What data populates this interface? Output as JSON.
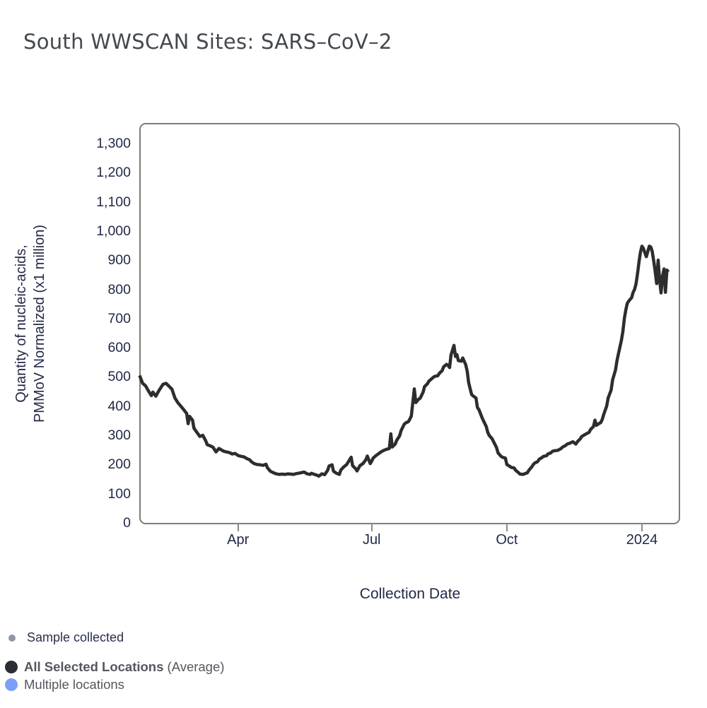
{
  "title": "South WWSCAN Sites: SARS–CoV–2",
  "y_axis": {
    "label_line1": "Quantity of nucleic-acids,",
    "label_line2": "PMMoV Normalized (x1 million)"
  },
  "x_axis": {
    "label": "Collection Date"
  },
  "legend": {
    "sample": {
      "label": "Sample collected",
      "marker_color": "#8e97a1"
    },
    "average": {
      "label_bold": "All Selected Locations",
      "label_rest": " (Average)",
      "marker_color": "#2a2d32"
    },
    "multiple": {
      "label": "Multiple locations",
      "marker_color": "#7aa0f8"
    }
  },
  "colors": {
    "line": "#2d2d2d",
    "panel_border": "#7d7d7d",
    "tick_mark": "#8a8a8a",
    "axis_text": "#232947",
    "title_text": "#44484f",
    "legend_text": "#54575d"
  },
  "chart_data": {
    "type": "line",
    "title": "South WWSCAN Sites: SARS–CoV–2",
    "xlabel": "Collection Date",
    "ylabel": "Quantity of nucleic-acids, PMMoV Normalized (x1 million)",
    "x_domain": [
      "2023-01-24",
      "2024-01-19"
    ],
    "ylim": [
      0,
      1365
    ],
    "grid": false,
    "legend_position": "bottom-left",
    "y_ticks": [
      0,
      100,
      200,
      300,
      400,
      500,
      600,
      700,
      800,
      900,
      1000,
      1100,
      1200,
      1300
    ],
    "x_ticks": [
      {
        "date": "2023-04-01",
        "label": "Apr"
      },
      {
        "date": "2023-07-01",
        "label": "Jul"
      },
      {
        "date": "2023-10-01",
        "label": "Oct"
      },
      {
        "date": "2024-01-01",
        "label": "2024"
      }
    ],
    "series": [
      {
        "name": "All Selected Locations (Average)",
        "color": "#2d2d2d",
        "points": [
          [
            "2023-01-24",
            505
          ],
          [
            "2023-01-26",
            478
          ],
          [
            "2023-01-28",
            470
          ],
          [
            "2023-01-30",
            452
          ],
          [
            "2023-02-01",
            436
          ],
          [
            "2023-02-02",
            448
          ],
          [
            "2023-02-04",
            434
          ],
          [
            "2023-02-06",
            452
          ],
          [
            "2023-02-08",
            468
          ],
          [
            "2023-02-09",
            475
          ],
          [
            "2023-02-11",
            478
          ],
          [
            "2023-02-13",
            468
          ],
          [
            "2023-02-15",
            458
          ],
          [
            "2023-02-17",
            428
          ],
          [
            "2023-02-19",
            412
          ],
          [
            "2023-02-21",
            400
          ],
          [
            "2023-02-23",
            388
          ],
          [
            "2023-02-25",
            375
          ],
          [
            "2023-02-26",
            340
          ],
          [
            "2023-02-27",
            365
          ],
          [
            "2023-03-01",
            352
          ],
          [
            "2023-03-02",
            324
          ],
          [
            "2023-03-04",
            310
          ],
          [
            "2023-03-06",
            296
          ],
          [
            "2023-03-08",
            300
          ],
          [
            "2023-03-10",
            281
          ],
          [
            "2023-03-11",
            268
          ],
          [
            "2023-03-13",
            264
          ],
          [
            "2023-03-15",
            259
          ],
          [
            "2023-03-17",
            243
          ],
          [
            "2023-03-19",
            255
          ],
          [
            "2023-03-21",
            249
          ],
          [
            "2023-03-22",
            246
          ],
          [
            "2023-03-24",
            243
          ],
          [
            "2023-03-26",
            241
          ],
          [
            "2023-03-28",
            236
          ],
          [
            "2023-03-30",
            238
          ],
          [
            "2023-04-01",
            231
          ],
          [
            "2023-04-03",
            228
          ],
          [
            "2023-04-05",
            226
          ],
          [
            "2023-04-07",
            220
          ],
          [
            "2023-04-09",
            216
          ],
          [
            "2023-04-10",
            210
          ],
          [
            "2023-04-12",
            203
          ],
          [
            "2023-04-14",
            200
          ],
          [
            "2023-04-16",
            199
          ],
          [
            "2023-04-18",
            197
          ],
          [
            "2023-04-20",
            201
          ],
          [
            "2023-04-21",
            189
          ],
          [
            "2023-04-23",
            177
          ],
          [
            "2023-04-25",
            172
          ],
          [
            "2023-04-27",
            168
          ],
          [
            "2023-04-29",
            166
          ],
          [
            "2023-05-01",
            167
          ],
          [
            "2023-05-03",
            166
          ],
          [
            "2023-05-05",
            168
          ],
          [
            "2023-05-07",
            167
          ],
          [
            "2023-05-09",
            166
          ],
          [
            "2023-05-10",
            168
          ],
          [
            "2023-05-12",
            170
          ],
          [
            "2023-05-14",
            172
          ],
          [
            "2023-05-16",
            174
          ],
          [
            "2023-05-18",
            168
          ],
          [
            "2023-05-20",
            166
          ],
          [
            "2023-05-21",
            170
          ],
          [
            "2023-05-23",
            166
          ],
          [
            "2023-05-25",
            163
          ],
          [
            "2023-05-26",
            160
          ],
          [
            "2023-05-28",
            168
          ],
          [
            "2023-05-30",
            165
          ],
          [
            "2023-06-01",
            180
          ],
          [
            "2023-06-02",
            195
          ],
          [
            "2023-06-04",
            199
          ],
          [
            "2023-06-05",
            177
          ],
          [
            "2023-06-07",
            170
          ],
          [
            "2023-06-09",
            166
          ],
          [
            "2023-06-10",
            181
          ],
          [
            "2023-06-12",
            192
          ],
          [
            "2023-06-14",
            200
          ],
          [
            "2023-06-16",
            217
          ],
          [
            "2023-06-17",
            225
          ],
          [
            "2023-06-18",
            196
          ],
          [
            "2023-06-20",
            186
          ],
          [
            "2023-06-21",
            178
          ],
          [
            "2023-06-23",
            196
          ],
          [
            "2023-06-25",
            203
          ],
          [
            "2023-06-27",
            216
          ],
          [
            "2023-06-28",
            229
          ],
          [
            "2023-06-30",
            203
          ],
          [
            "2023-07-01",
            211
          ],
          [
            "2023-07-02",
            222
          ],
          [
            "2023-07-04",
            231
          ],
          [
            "2023-07-06",
            238
          ],
          [
            "2023-07-07",
            242
          ],
          [
            "2023-07-09",
            248
          ],
          [
            "2023-07-11",
            252
          ],
          [
            "2023-07-13",
            255
          ],
          [
            "2023-07-14",
            305
          ],
          [
            "2023-07-15",
            260
          ],
          [
            "2023-07-17",
            270
          ],
          [
            "2023-07-18",
            283
          ],
          [
            "2023-07-20",
            298
          ],
          [
            "2023-07-21",
            316
          ],
          [
            "2023-07-23",
            337
          ],
          [
            "2023-07-24",
            342
          ],
          [
            "2023-07-26",
            347
          ],
          [
            "2023-07-27",
            356
          ],
          [
            "2023-07-28",
            366
          ],
          [
            "2023-07-30",
            459
          ],
          [
            "2023-07-31",
            412
          ],
          [
            "2023-08-02",
            424
          ],
          [
            "2023-08-03",
            427
          ],
          [
            "2023-08-05",
            448
          ],
          [
            "2023-08-06",
            467
          ],
          [
            "2023-08-08",
            477
          ],
          [
            "2023-08-09",
            486
          ],
          [
            "2023-08-10",
            490
          ],
          [
            "2023-08-12",
            499
          ],
          [
            "2023-08-13",
            502
          ],
          [
            "2023-08-15",
            504
          ],
          [
            "2023-08-16",
            512
          ],
          [
            "2023-08-18",
            522
          ],
          [
            "2023-08-19",
            535
          ],
          [
            "2023-08-21",
            543
          ],
          [
            "2023-08-22",
            540
          ],
          [
            "2023-08-23",
            532
          ],
          [
            "2023-08-24",
            575
          ],
          [
            "2023-08-26",
            608
          ],
          [
            "2023-08-27",
            570
          ],
          [
            "2023-08-28",
            577
          ],
          [
            "2023-08-29",
            556
          ],
          [
            "2023-08-31",
            554
          ],
          [
            "2023-09-01",
            565
          ],
          [
            "2023-09-03",
            542
          ],
          [
            "2023-09-04",
            520
          ],
          [
            "2023-09-05",
            480
          ],
          [
            "2023-09-07",
            440
          ],
          [
            "2023-09-08",
            435
          ],
          [
            "2023-09-10",
            428
          ],
          [
            "2023-09-11",
            395
          ],
          [
            "2023-09-12",
            388
          ],
          [
            "2023-09-14",
            362
          ],
          [
            "2023-09-15",
            351
          ],
          [
            "2023-09-17",
            330
          ],
          [
            "2023-09-18",
            310
          ],
          [
            "2023-09-19",
            300
          ],
          [
            "2023-09-21",
            288
          ],
          [
            "2023-09-22",
            278
          ],
          [
            "2023-09-24",
            258
          ],
          [
            "2023-09-25",
            240
          ],
          [
            "2023-09-27",
            228
          ],
          [
            "2023-09-28",
            225
          ],
          [
            "2023-09-30",
            222
          ],
          [
            "2023-10-01",
            200
          ],
          [
            "2023-10-03",
            194
          ],
          [
            "2023-10-04",
            190
          ],
          [
            "2023-10-06",
            188
          ],
          [
            "2023-10-07",
            180
          ],
          [
            "2023-10-09",
            172
          ],
          [
            "2023-10-10",
            167
          ],
          [
            "2023-10-12",
            166
          ],
          [
            "2023-10-13",
            168
          ],
          [
            "2023-10-15",
            172
          ],
          [
            "2023-10-16",
            180
          ],
          [
            "2023-10-18",
            192
          ],
          [
            "2023-10-19",
            200
          ],
          [
            "2023-10-20",
            205
          ],
          [
            "2023-10-22",
            210
          ],
          [
            "2023-10-23",
            218
          ],
          [
            "2023-10-25",
            224
          ],
          [
            "2023-10-26",
            228
          ],
          [
            "2023-10-28",
            230
          ],
          [
            "2023-10-29",
            236
          ],
          [
            "2023-10-31",
            240
          ],
          [
            "2023-11-01",
            245
          ],
          [
            "2023-11-02",
            247
          ],
          [
            "2023-11-04",
            248
          ],
          [
            "2023-11-05",
            249
          ],
          [
            "2023-11-07",
            255
          ],
          [
            "2023-11-08",
            260
          ],
          [
            "2023-11-10",
            265
          ],
          [
            "2023-11-11",
            270
          ],
          [
            "2023-11-13",
            273
          ],
          [
            "2023-11-14",
            276
          ],
          [
            "2023-11-15",
            278
          ],
          [
            "2023-11-17",
            270
          ],
          [
            "2023-11-18",
            278
          ],
          [
            "2023-11-20",
            288
          ],
          [
            "2023-11-21",
            296
          ],
          [
            "2023-11-23",
            302
          ],
          [
            "2023-11-24",
            305
          ],
          [
            "2023-11-26",
            310
          ],
          [
            "2023-11-27",
            320
          ],
          [
            "2023-11-29",
            330
          ],
          [
            "2023-11-30",
            352
          ],
          [
            "2023-12-01",
            334
          ],
          [
            "2023-12-02",
            338
          ],
          [
            "2023-12-04",
            344
          ],
          [
            "2023-12-05",
            355
          ],
          [
            "2023-12-06",
            372
          ],
          [
            "2023-12-08",
            400
          ],
          [
            "2023-12-09",
            428
          ],
          [
            "2023-12-11",
            455
          ],
          [
            "2023-12-12",
            490
          ],
          [
            "2023-12-14",
            524
          ],
          [
            "2023-12-15",
            556
          ],
          [
            "2023-12-16",
            580
          ],
          [
            "2023-12-18",
            625
          ],
          [
            "2023-12-19",
            655
          ],
          [
            "2023-12-20",
            700
          ],
          [
            "2023-12-21",
            730
          ],
          [
            "2023-12-22",
            752
          ],
          [
            "2023-12-23",
            760
          ],
          [
            "2023-12-25",
            772
          ],
          [
            "2023-12-26",
            790
          ],
          [
            "2023-12-27",
            800
          ],
          [
            "2023-12-28",
            820
          ],
          [
            "2023-12-29",
            855
          ],
          [
            "2023-12-30",
            895
          ],
          [
            "2023-12-31",
            928
          ],
          [
            "2024-01-01",
            948
          ],
          [
            "2024-01-02",
            940
          ],
          [
            "2024-01-03",
            925
          ],
          [
            "2024-01-04",
            912
          ],
          [
            "2024-01-05",
            930
          ],
          [
            "2024-01-06",
            948
          ],
          [
            "2024-01-07",
            945
          ],
          [
            "2024-01-08",
            930
          ],
          [
            "2024-01-09",
            898
          ],
          [
            "2024-01-10",
            862
          ],
          [
            "2024-01-11",
            820
          ],
          [
            "2024-01-12",
            900
          ],
          [
            "2024-01-13",
            835
          ],
          [
            "2024-01-14",
            788
          ],
          [
            "2024-01-15",
            845
          ],
          [
            "2024-01-16",
            870
          ],
          [
            "2024-01-17",
            790
          ],
          [
            "2024-01-18",
            866
          ],
          [
            "2024-01-19",
            860
          ]
        ]
      }
    ]
  }
}
